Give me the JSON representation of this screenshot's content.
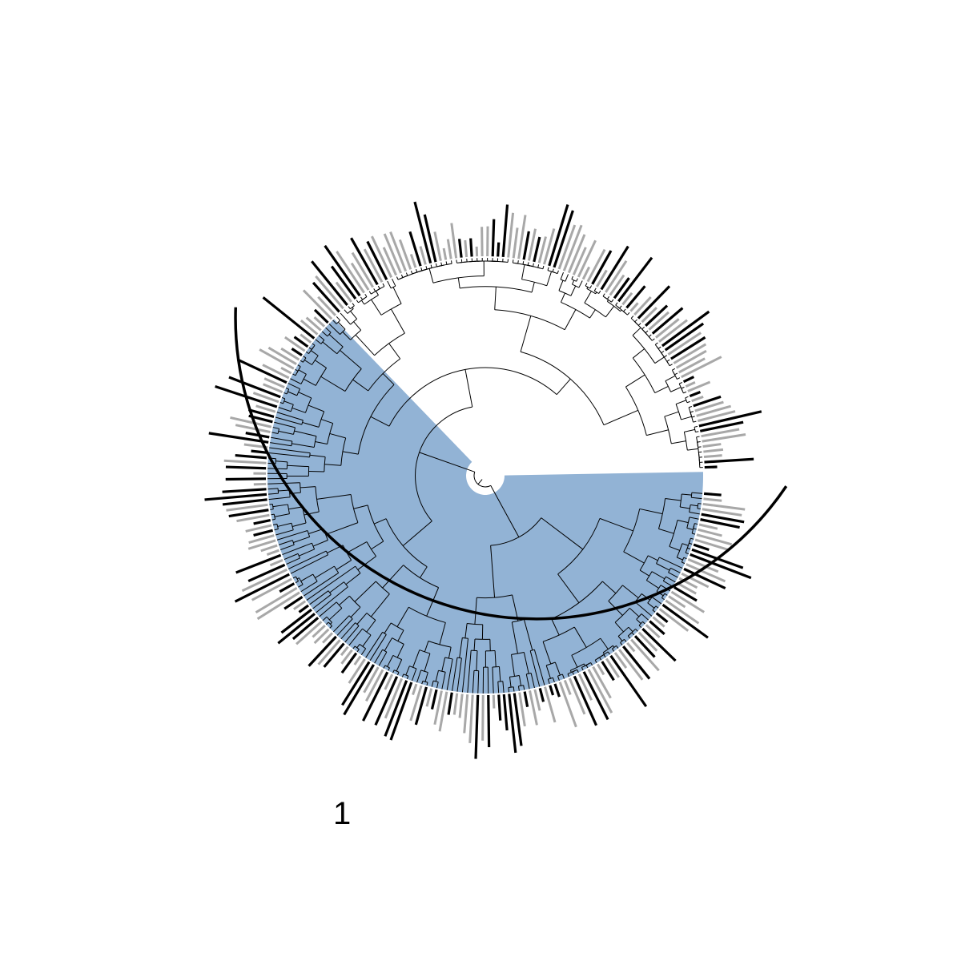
{
  "tree": {
    "tip_count": 260,
    "layout": "circular",
    "gap_sector": "east"
  },
  "highlighted_clade": {
    "label": "1",
    "fill_color": "#92b3d5",
    "bracket_color": "#000000"
  },
  "tip_bars": {
    "colors": [
      "#000000",
      "#a8a8a8"
    ]
  }
}
